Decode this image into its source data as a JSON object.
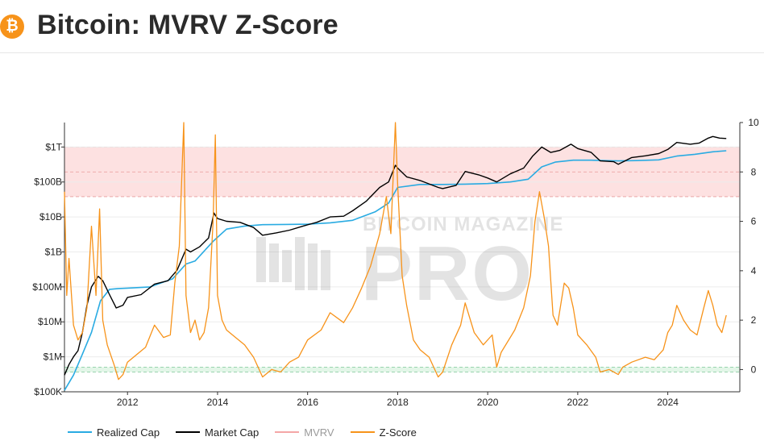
{
  "header": {
    "logo_glyph": "₿",
    "logo_icon": "bitcoin-icon",
    "title": "Bitcoin: MVRV Z-Score"
  },
  "watermark": {
    "line1": "BITCOIN MAGAZINE",
    "line2": "PRO"
  },
  "colors": {
    "realized_cap": "#29abe2",
    "market_cap": "#000000",
    "mvrv": "#f4a6a6",
    "z_score": "#f7931a",
    "top_band": "#fde1e1",
    "bottom_band": "#e3f6e8"
  },
  "chart_data": {
    "type": "line",
    "x_ticks": [
      "2012",
      "2014",
      "2016",
      "2018",
      "2020",
      "2022",
      "2024"
    ],
    "xlim": [
      2010.6,
      2025.6
    ],
    "y_left": {
      "scale": "log",
      "ticks": [
        "$100K",
        "$1M",
        "$10M",
        "$100M",
        "$1B",
        "$10B",
        "$100B",
        "$1T"
      ],
      "range_log10": [
        5,
        12.7
      ]
    },
    "y_right": {
      "ticks": [
        "0",
        "2",
        "4",
        "6",
        "8",
        "10"
      ],
      "range": [
        -0.9,
        10
      ]
    },
    "bands": {
      "top_zone_z": [
        7,
        9
      ],
      "bottom_zone_z": [
        -0.1,
        0.1
      ]
    },
    "legend": [
      "Realized Cap",
      "Market Cap",
      "MVRV",
      "Z-Score"
    ],
    "series": [
      {
        "name": "Realized Cap",
        "axis": "left",
        "x": [
          2010.6,
          2010.8,
          2011.0,
          2011.2,
          2011.4,
          2011.6,
          2011.8,
          2012.0,
          2012.5,
          2013.0,
          2013.3,
          2013.5,
          2013.9,
          2014.2,
          2014.6,
          2015.0,
          2015.5,
          2016.0,
          2016.5,
          2017.0,
          2017.5,
          2017.8,
          2018.0,
          2018.5,
          2019.0,
          2019.5,
          2020.0,
          2020.5,
          2020.9,
          2021.2,
          2021.5,
          2021.9,
          2022.3,
          2022.6,
          2022.9,
          2023.3,
          2023.8,
          2024.2,
          2024.6,
          2025.0,
          2025.3
        ],
        "y": [
          110000,
          300000,
          1200000,
          5000000,
          40000000,
          85000000,
          90000000,
          92000000,
          100000000,
          170000000,
          450000000,
          550000000,
          2000000000,
          4500000000,
          5500000000,
          6000000000,
          6100000000,
          6200000000,
          6800000000,
          8000000000,
          14000000000,
          25000000000,
          70000000000,
          85000000000,
          85000000000,
          87000000000,
          90000000000,
          100000000000,
          120000000000,
          270000000000,
          370000000000,
          420000000000,
          420000000000,
          410000000000,
          400000000000,
          410000000000,
          430000000000,
          550000000000,
          620000000000,
          730000000000,
          780000000000
        ]
      },
      {
        "name": "Market Cap",
        "axis": "left",
        "x": [
          2010.6,
          2010.7,
          2010.8,
          2010.9,
          2011.0,
          2011.1,
          2011.2,
          2011.35,
          2011.45,
          2011.6,
          2011.75,
          2011.9,
          2012.0,
          2012.3,
          2012.6,
          2012.9,
          2013.1,
          2013.3,
          2013.4,
          2013.6,
          2013.8,
          2013.92,
          2014.0,
          2014.2,
          2014.5,
          2014.8,
          2015.0,
          2015.3,
          2015.6,
          2015.9,
          2016.2,
          2016.5,
          2016.8,
          2017.0,
          2017.3,
          2017.6,
          2017.8,
          2017.95,
          2018.0,
          2018.2,
          2018.5,
          2018.9,
          2019.0,
          2019.3,
          2019.5,
          2019.8,
          2020.0,
          2020.2,
          2020.5,
          2020.8,
          2021.0,
          2021.2,
          2021.4,
          2021.6,
          2021.85,
          2022.0,
          2022.3,
          2022.5,
          2022.8,
          2022.9,
          2023.2,
          2023.5,
          2023.8,
          2024.0,
          2024.2,
          2024.5,
          2024.7,
          2024.9,
          2025.0,
          2025.15,
          2025.3
        ],
        "y": [
          300000,
          600000,
          1000000,
          1500000,
          5000000,
          30000000,
          100000000,
          200000000,
          150000000,
          60000000,
          25000000,
          30000000,
          50000000,
          60000000,
          120000000,
          150000000,
          300000000,
          1200000000,
          1000000000,
          1400000000,
          2500000000,
          13000000000,
          9000000000,
          7500000000,
          7000000000,
          5000000000,
          3000000000,
          3500000000,
          4200000000,
          5500000000,
          7000000000,
          10000000000,
          10500000000,
          15000000000,
          28000000000,
          70000000000,
          100000000000,
          300000000000,
          250000000000,
          140000000000,
          110000000000,
          70000000000,
          65000000000,
          80000000000,
          200000000000,
          160000000000,
          130000000000,
          100000000000,
          170000000000,
          250000000000,
          550000000000,
          1000000000000,
          700000000000,
          800000000000,
          1200000000000,
          900000000000,
          700000000000,
          400000000000,
          380000000000,
          320000000000,
          500000000000,
          560000000000,
          650000000000,
          850000000000,
          1350000000000,
          1200000000000,
          1300000000000,
          1800000000000,
          2000000000000,
          1800000000000,
          1750000000000
        ]
      },
      {
        "name": "Z-Score",
        "axis": "right",
        "x": [
          2010.6,
          2010.65,
          2010.7,
          2010.8,
          2010.9,
          2011.0,
          2011.1,
          2011.2,
          2011.3,
          2011.38,
          2011.45,
          2011.55,
          2011.7,
          2011.8,
          2011.9,
          2012.0,
          2012.2,
          2012.4,
          2012.6,
          2012.8,
          2012.95,
          2013.05,
          2013.15,
          2013.25,
          2013.3,
          2013.4,
          2013.5,
          2013.6,
          2013.7,
          2013.8,
          2013.9,
          2013.95,
          2014.0,
          2014.1,
          2014.2,
          2014.4,
          2014.6,
          2014.8,
          2015.0,
          2015.2,
          2015.4,
          2015.6,
          2015.8,
          2016.0,
          2016.3,
          2016.5,
          2016.8,
          2017.0,
          2017.2,
          2017.4,
          2017.6,
          2017.75,
          2017.85,
          2017.95,
          2018.0,
          2018.1,
          2018.2,
          2018.35,
          2018.5,
          2018.7,
          2018.9,
          2019.0,
          2019.2,
          2019.4,
          2019.5,
          2019.7,
          2019.9,
          2020.1,
          2020.2,
          2020.3,
          2020.6,
          2020.8,
          2020.95,
          2021.05,
          2021.15,
          2021.25,
          2021.35,
          2021.45,
          2021.55,
          2021.7,
          2021.8,
          2021.9,
          2022.0,
          2022.2,
          2022.4,
          2022.5,
          2022.7,
          2022.9,
          2023.0,
          2023.2,
          2023.5,
          2023.7,
          2023.9,
          2024.0,
          2024.1,
          2024.2,
          2024.35,
          2024.5,
          2024.65,
          2024.8,
          2024.9,
          2025.0,
          2025.1,
          2025.2,
          2025.3
        ],
        "y": [
          7.2,
          3.0,
          4.5,
          1.8,
          1.2,
          1.5,
          2.5,
          5.8,
          3.0,
          6.5,
          2.0,
          1.0,
          0.2,
          -0.4,
          -0.2,
          0.3,
          0.6,
          0.9,
          1.8,
          1.3,
          1.4,
          3.5,
          5.0,
          10.0,
          3.0,
          1.5,
          2.0,
          1.2,
          1.5,
          2.5,
          6.0,
          9.5,
          3.0,
          2.0,
          1.6,
          1.3,
          1.0,
          0.5,
          -0.3,
          0.0,
          -0.1,
          0.3,
          0.5,
          1.2,
          1.6,
          2.3,
          1.9,
          2.5,
          3.3,
          4.2,
          5.5,
          7.0,
          5.5,
          10.0,
          7.5,
          3.8,
          2.6,
          1.2,
          0.8,
          0.5,
          -0.3,
          -0.1,
          1.0,
          1.8,
          2.7,
          1.5,
          1.0,
          1.4,
          0.1,
          0.7,
          1.6,
          2.5,
          3.8,
          6.0,
          7.2,
          6.2,
          5.0,
          2.2,
          1.8,
          3.5,
          3.3,
          2.5,
          1.4,
          1.0,
          0.5,
          -0.1,
          0.0,
          -0.2,
          0.1,
          0.3,
          0.5,
          0.4,
          0.8,
          1.5,
          1.8,
          2.6,
          2.0,
          1.6,
          1.4,
          2.5,
          3.2,
          2.6,
          1.8,
          1.5,
          2.2
        ]
      }
    ]
  }
}
